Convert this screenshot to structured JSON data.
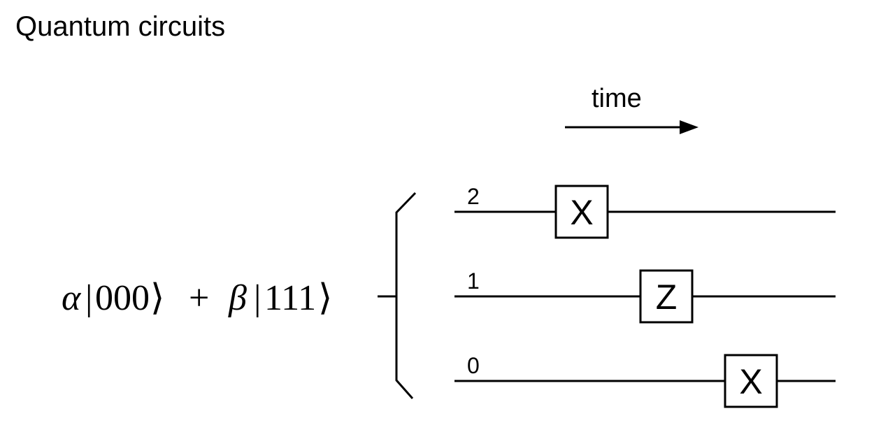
{
  "title": "Quantum circuits",
  "time_label": "time",
  "state": {
    "alpha": "α",
    "ket0_left": "|",
    "ket0_digits": "000",
    "ket0_right": "⟩",
    "plus": "+",
    "beta": "β",
    "ket1_left": "|",
    "ket1_digits": "111",
    "ket1_right": "⟩"
  },
  "wires": [
    {
      "label": "2",
      "gate": "X"
    },
    {
      "label": "1",
      "gate": "Z"
    },
    {
      "label": "0",
      "gate": "X"
    }
  ],
  "colors": {
    "line": "#000000",
    "background": "#ffffff"
  }
}
